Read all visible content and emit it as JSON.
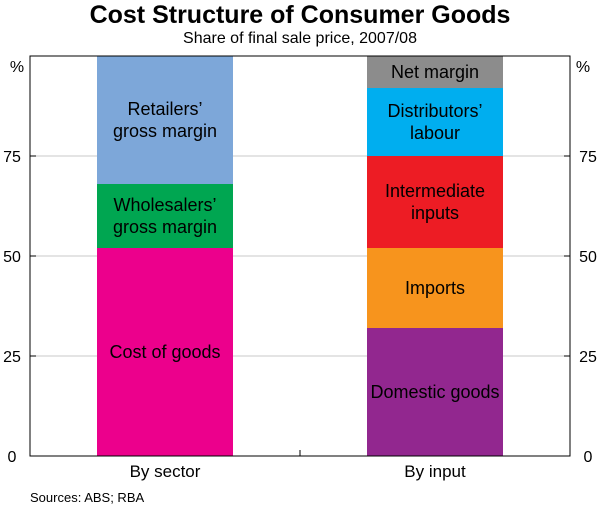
{
  "chart_data": {
    "type": "bar",
    "stacked": true,
    "title": "Cost Structure of Consumer Goods",
    "subtitle": "Share of final sale price, 2007/08",
    "ylabel_left": "%",
    "ylabel_right": "%",
    "ylim": [
      0,
      100
    ],
    "yticks": [
      0,
      25,
      50,
      75
    ],
    "categories": [
      "By sector",
      "By input"
    ],
    "stacks": [
      {
        "category": "By sector",
        "segments": [
          {
            "label": "Cost of goods",
            "value": 52,
            "color": "#ec008c"
          },
          {
            "label": "Wholesalers’ gross margin",
            "value": 16,
            "color": "#00a651"
          },
          {
            "label": "Retailers’ gross margin",
            "value": 32,
            "color": "#7da7d9"
          }
        ]
      },
      {
        "category": "By input",
        "segments": [
          {
            "label": "Domestic goods",
            "value": 32,
            "color": "#92278f"
          },
          {
            "label": "Imports",
            "value": 20,
            "color": "#f7941d"
          },
          {
            "label": "Intermediate inputs",
            "value": 23,
            "color": "#ed1c24"
          },
          {
            "label": "Distributors’ labour",
            "value": 17,
            "color": "#00aeef"
          },
          {
            "label": "Net margin",
            "value": 8,
            "color": "#8c8c8c"
          }
        ]
      }
    ],
    "grid": true,
    "source": "Sources: ABS; RBA"
  }
}
